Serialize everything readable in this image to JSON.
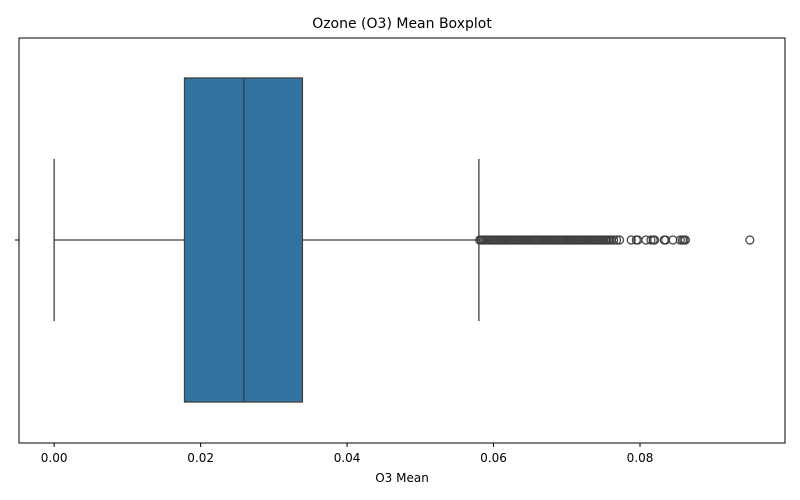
{
  "chart_data": {
    "type": "boxplot",
    "title": "Ozone (O3) Mean Boxplot",
    "xlabel": "O3 Mean",
    "ylabel": "",
    "orientation": "horizontal",
    "xlim": [
      -0.0048,
      0.0998
    ],
    "xticks": [
      0.0,
      0.02,
      0.04,
      0.06,
      0.08
    ],
    "xtick_labels": [
      "0.00",
      "0.02",
      "0.04",
      "0.06",
      "0.08"
    ],
    "grid": false,
    "box_color": "#3274a1",
    "line_color": "#3f3f3f",
    "box": {
      "whisker_low": 0.0,
      "q1": 0.0178,
      "median": 0.0259,
      "q3": 0.0339,
      "whisker_high": 0.058
    },
    "outliers": [
      0.0581,
      0.0583,
      0.0585,
      0.0587,
      0.0589,
      0.0591,
      0.0593,
      0.0595,
      0.0597,
      0.0599,
      0.0601,
      0.0603,
      0.0605,
      0.0607,
      0.0609,
      0.0611,
      0.0613,
      0.0615,
      0.0617,
      0.0619,
      0.0621,
      0.0623,
      0.0625,
      0.0627,
      0.0629,
      0.0631,
      0.0633,
      0.0635,
      0.0637,
      0.0639,
      0.0641,
      0.0643,
      0.0645,
      0.0647,
      0.0649,
      0.0651,
      0.0653,
      0.0655,
      0.0657,
      0.0659,
      0.0661,
      0.0663,
      0.0665,
      0.0667,
      0.0669,
      0.0671,
      0.0673,
      0.0675,
      0.0677,
      0.0679,
      0.0681,
      0.0683,
      0.0685,
      0.0687,
      0.0689,
      0.0691,
      0.0693,
      0.0695,
      0.0697,
      0.0699,
      0.0701,
      0.0703,
      0.0705,
      0.0707,
      0.0709,
      0.0711,
      0.0713,
      0.0715,
      0.0717,
      0.0719,
      0.0721,
      0.0723,
      0.0725,
      0.0727,
      0.0729,
      0.0731,
      0.0733,
      0.0735,
      0.0737,
      0.0739,
      0.0741,
      0.0743,
      0.0745,
      0.0747,
      0.0749,
      0.0751,
      0.0753,
      0.0755,
      0.0757,
      0.0759,
      0.0761,
      0.0764,
      0.0768,
      0.0772,
      0.0788,
      0.0795,
      0.0797,
      0.0808,
      0.0815,
      0.0818,
      0.082,
      0.0833,
      0.0835,
      0.0845,
      0.0855,
      0.0858,
      0.086,
      0.0862,
      0.095
    ]
  }
}
